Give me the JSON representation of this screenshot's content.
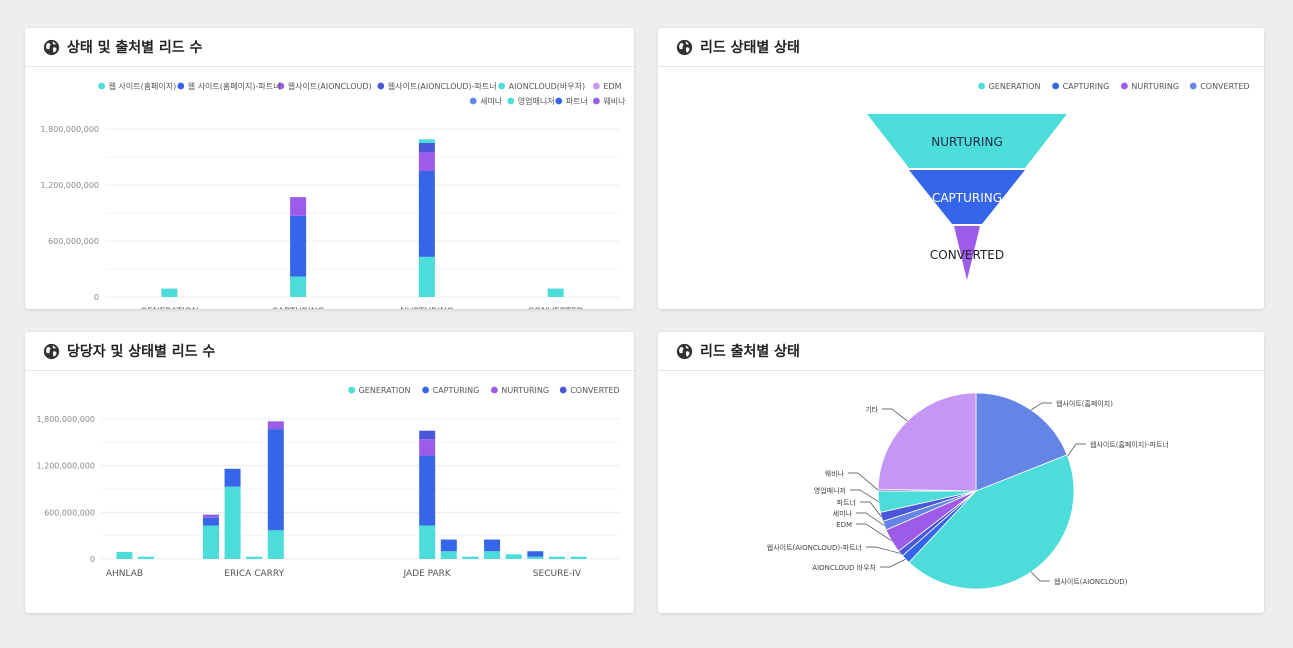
{
  "colors": {
    "teal": "#4cdcd9",
    "blue": "#3565e8",
    "purple": "#9d5bea",
    "indigo": "#4a57d8",
    "lightpurple": "#c596f3",
    "cornflower": "#6585e6",
    "grid": "#ececec",
    "axis_text": "#888888"
  },
  "panels": {
    "p1": {
      "title": "상태 및 출처별 리드 수",
      "icon": "globe-icon",
      "chart_data": {
        "type": "bar",
        "stacked": true,
        "categories": [
          "GENERATION",
          "CAPTURING",
          "NURTURING",
          "CONVERTED"
        ],
        "yticks": [
          "1,800,000,000",
          "1,200,000,000",
          "600,000,000",
          "0"
        ],
        "ylim": [
          0,
          1800000000
        ],
        "grid": true,
        "legend_position": "top-right",
        "legend": [
          {
            "name": "웹 사이트(홈페이지)",
            "color": "#4cdcd9"
          },
          {
            "name": "웹 사이트(홈페이지)-파트너",
            "color": "#3565e8"
          },
          {
            "name": "웹사이트(AIONCLOUD)",
            "color": "#9d5bea"
          },
          {
            "name": "웹사이트(AIONCLOUD)-파트너",
            "color": "#4a57d8"
          },
          {
            "name": "AIONCLOUD(바우처)",
            "color": "#4cdcd9"
          },
          {
            "name": "EDM",
            "color": "#c596f3"
          },
          {
            "name": "세미나",
            "color": "#6585e6"
          },
          {
            "name": "영업매니저",
            "color": "#4cdcd9"
          },
          {
            "name": "파트너",
            "color": "#3565e8"
          },
          {
            "name": "웨비나",
            "color": "#9d5bea"
          }
        ],
        "bars": [
          {
            "category": "GENERATION",
            "segments": [
              {
                "value": 90000000,
                "color": "#4cdcd9"
              }
            ]
          },
          {
            "category": "CAPTURING",
            "segments": [
              {
                "value": 220000000,
                "color": "#4cdcd9"
              },
              {
                "value": 650000000,
                "color": "#3565e8"
              },
              {
                "value": 200000000,
                "color": "#9d5bea"
              }
            ]
          },
          {
            "category": "NURTURING",
            "segments": [
              {
                "value": 430000000,
                "color": "#4cdcd9"
              },
              {
                "value": 920000000,
                "color": "#3565e8"
              },
              {
                "value": 200000000,
                "color": "#9d5bea"
              },
              {
                "value": 100000000,
                "color": "#4a57d8"
              },
              {
                "value": 40000000,
                "color": "#4cdcd9"
              }
            ]
          },
          {
            "category": "CONVERTED",
            "segments": [
              {
                "value": 90000000,
                "color": "#4cdcd9"
              }
            ]
          }
        ]
      }
    },
    "p2": {
      "title": "리드 상태별 상태",
      "icon": "globe-icon",
      "chart_data": {
        "type": "funnel",
        "legend_position": "top-right",
        "legend": [
          {
            "name": "GENERATION",
            "color": "#4cdcd9"
          },
          {
            "name": "CAPTURING",
            "color": "#3565e8"
          },
          {
            "name": "NURTURING",
            "color": "#9d5bea"
          },
          {
            "name": "CONVERTED",
            "color": "#6585e6"
          }
        ],
        "stages": [
          {
            "label": "NURTURING",
            "color": "#4cdcd9"
          },
          {
            "label": "CAPTURING",
            "color": "#3565e8"
          },
          {
            "label": "CONVERTED",
            "color": "#9d5bea"
          }
        ]
      }
    },
    "p3": {
      "title": "당당자 및 상태별 리드 수",
      "icon": "globe-icon",
      "chart_data": {
        "type": "bar",
        "stacked": true,
        "x_labels": [
          "AHNLAB",
          "ERICA CARRY",
          "JADE PARK",
          "SECURE-IV"
        ],
        "yticks": [
          "1,800,000,000",
          "1,200,000,000",
          "600,000,000",
          "0"
        ],
        "ylim": [
          0,
          1800000000
        ],
        "grid": true,
        "legend_position": "top-right",
        "legend": [
          {
            "name": "GENERATION",
            "color": "#4cdcd9"
          },
          {
            "name": "CAPTURING",
            "color": "#3565e8"
          },
          {
            "name": "NURTURING",
            "color": "#9d5bea"
          },
          {
            "name": "CONVERTED",
            "color": "#4a57d8"
          }
        ],
        "bars": [
          {
            "x": 1,
            "segments": [
              90000000,
              0,
              0,
              0
            ]
          },
          {
            "x": 2,
            "segments": [
              30000000,
              0,
              0,
              0
            ]
          },
          {
            "x": 5,
            "segments": [
              430000000,
              100000000,
              30000000,
              10000000
            ]
          },
          {
            "x": 6,
            "segments": [
              930000000,
              230000000,
              0,
              0
            ]
          },
          {
            "x": 7,
            "segments": [
              30000000,
              0,
              0,
              0
            ]
          },
          {
            "x": 8,
            "segments": [
              370000000,
              1300000000,
              100000000,
              0
            ]
          },
          {
            "x": 15,
            "segments": [
              430000000,
              900000000,
              210000000,
              110000000
            ]
          },
          {
            "x": 16,
            "segments": [
              100000000,
              150000000,
              0,
              0
            ]
          },
          {
            "x": 17,
            "segments": [
              30000000,
              0,
              0,
              0
            ]
          },
          {
            "x": 18,
            "segments": [
              100000000,
              150000000,
              0,
              0
            ]
          },
          {
            "x": 19,
            "segments": [
              60000000,
              0,
              0,
              0
            ]
          },
          {
            "x": 20,
            "segments": [
              30000000,
              70000000,
              0,
              0
            ]
          },
          {
            "x": 21,
            "segments": [
              30000000,
              0,
              0,
              0
            ]
          },
          {
            "x": 22,
            "segments": [
              30000000,
              0,
              0,
              0
            ]
          }
        ]
      }
    },
    "p4": {
      "title": "리드 출처별 상태",
      "icon": "globe-icon",
      "chart_data": {
        "type": "pie",
        "slices": [
          {
            "label": "웹사이트(홈페이지)",
            "value": 19.0,
            "color": "#6585e6"
          },
          {
            "label": "웹사이트(AIONCLOUD)",
            "value": 43.0,
            "color": "#4cdcd9"
          },
          {
            "label": "AIONCLOUD 바우처",
            "value": 1.5,
            "color": "#3565e8"
          },
          {
            "label": "웹사이트(AIONCLOUD)-파트너",
            "value": 1.0,
            "color": "#4a57d8"
          },
          {
            "label": "EDM",
            "value": 4.0,
            "color": "#9d5bea"
          },
          {
            "label": "세미나",
            "value": 1.5,
            "color": "#6585e6"
          },
          {
            "label": "파트너",
            "value": 1.5,
            "color": "#4a57d8"
          },
          {
            "label": "영업매니저",
            "value": 3.5,
            "color": "#4cdcd9"
          },
          {
            "label": "웨비나",
            "value": 0.3,
            "color": "#9d5bea"
          },
          {
            "label": "기타",
            "value": 24.7,
            "color": "#c596f3"
          }
        ],
        "extra_labels": [
          "웹사이트(홈페이지)-파트너"
        ]
      }
    }
  }
}
